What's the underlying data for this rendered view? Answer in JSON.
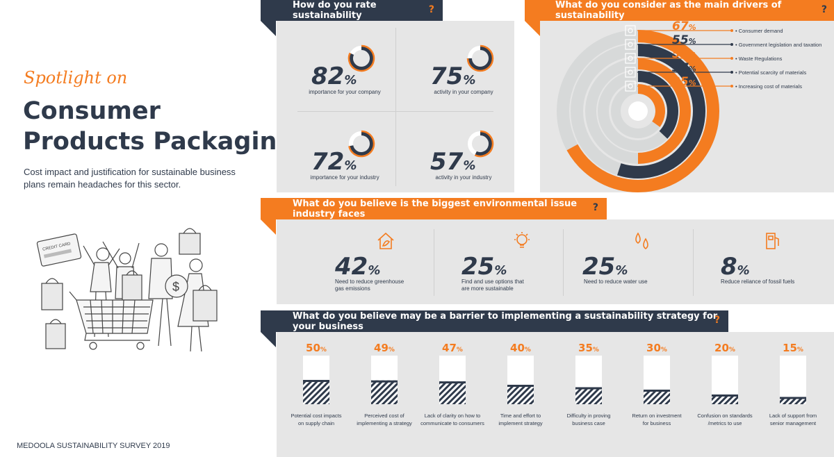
{
  "left": {
    "kicker": "Spotlight on",
    "title_line1": "Consumer",
    "title_line2": "Products Packaging",
    "subtitle_line1": "Cost impact and justification for sustainable business",
    "subtitle_line2": "plans remain headaches for this sector.",
    "footer": "MEDOOLA SUSTAINABILITY SURVEY 2019",
    "illustration_card_text": "CREDIT CARD"
  },
  "colors": {
    "orange": "#f47c20",
    "navy": "#2f3a4b",
    "panel": "#e6e6e6",
    "light_ring": "#d7d9d9"
  },
  "q_mark": "?",
  "pct_sign": "%",
  "rate": {
    "header": "How do you rate sustainability",
    "items": [
      {
        "value": "82",
        "label": "importance for your company",
        "fraction": 0.82
      },
      {
        "value": "75",
        "label": "activity in your company",
        "fraction": 0.75
      },
      {
        "value": "72",
        "label": "importance for your industry",
        "fraction": 0.72
      },
      {
        "value": "57",
        "label": "activity in your industry",
        "fraction": 0.57
      }
    ]
  },
  "drivers": {
    "header": "What do you consider as the main drivers of sustainability",
    "items": [
      {
        "value": "67",
        "label": "• Consumer demand",
        "color": "#f47c20",
        "icon": "recycle-icon"
      },
      {
        "value": "55",
        "label": "• Government legislation and taxation",
        "color": "#2f3a4b",
        "icon": "document-icon"
      },
      {
        "value": "50",
        "label": "• Waste Regulations",
        "color": "#f47c20",
        "icon": "bin-icon"
      },
      {
        "value": "37",
        "label": "• Potential scarcity of materials",
        "color": "#2f3a4b",
        "icon": "box-icon"
      },
      {
        "value": "35",
        "label": "• Increasing cost of materials",
        "color": "#f47c20",
        "icon": "coins-icon"
      }
    ]
  },
  "environment": {
    "header": "What do you believe is the biggest environmental issue industry faces",
    "items": [
      {
        "value": "42",
        "label1": "Need to reduce greenhouse",
        "label2": "gas emissions",
        "icon": "greenhouse-icon"
      },
      {
        "value": "25",
        "label1": "Find and use options that",
        "label2": "are more sustainable",
        "icon": "lightbulb-icon"
      },
      {
        "value": "25",
        "label1": "Need to reduce water use",
        "label2": "",
        "icon": "water-drops-icon"
      },
      {
        "value": "8",
        "label1": "Reduce reliance of fossil fuels",
        "label2": "",
        "icon": "fuel-pump-icon"
      }
    ]
  },
  "barrier": {
    "header": "What do you believe may be a barrier to implementing a sustainability strategy for your business"
  },
  "chart_data": {
    "type": "bar",
    "title": "What do you believe may be a barrier to implementing a sustainability strategy for your business",
    "ylim": [
      0,
      100
    ],
    "categories": [
      [
        "Potential cost impacts",
        "on supply chain"
      ],
      [
        "Perceived cost of",
        "implementing a strategy"
      ],
      [
        "Lack of clarity on how to",
        "communicate to consumers"
      ],
      [
        "Time and effort to",
        "implement strategy"
      ],
      [
        "Difficulty in proving",
        "business case"
      ],
      [
        "Return on investment",
        "for business"
      ],
      [
        "Confusion on standards",
        "/metrics to use"
      ],
      [
        "Lack of support from",
        "senior management"
      ]
    ],
    "values": [
      50,
      49,
      47,
      40,
      35,
      30,
      20,
      15
    ],
    "value_labels": [
      "50",
      "49",
      "47",
      "40",
      "35",
      "30",
      "20",
      "15"
    ]
  }
}
